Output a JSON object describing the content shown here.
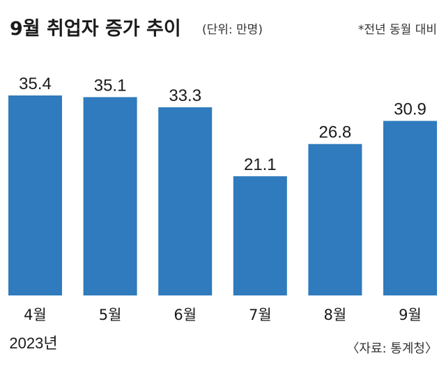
{
  "header": {
    "title": "9월 취업자 증가 추이",
    "unit": "(단위: 만명)",
    "note": "*전년 동월 대비"
  },
  "footer": {
    "year": "2023년",
    "source": "〈자료: 통계청〉"
  },
  "colors": {
    "bar": "#2f7bbd",
    "text": "#1a1a1a"
  },
  "chart_data": {
    "type": "bar",
    "title": "9월 취업자 증가 추이",
    "unit": "(단위: 만명)",
    "categories": [
      "4월",
      "5월",
      "6월",
      "7월",
      "8월",
      "9월"
    ],
    "values": [
      35.4,
      35.1,
      33.3,
      21.1,
      26.8,
      30.9
    ],
    "value_labels": [
      "35.4",
      "35.1",
      "33.3",
      "21.1",
      "26.8",
      "30.9"
    ],
    "ylim": [
      0,
      35.4
    ],
    "grid": false,
    "legend": "none"
  }
}
